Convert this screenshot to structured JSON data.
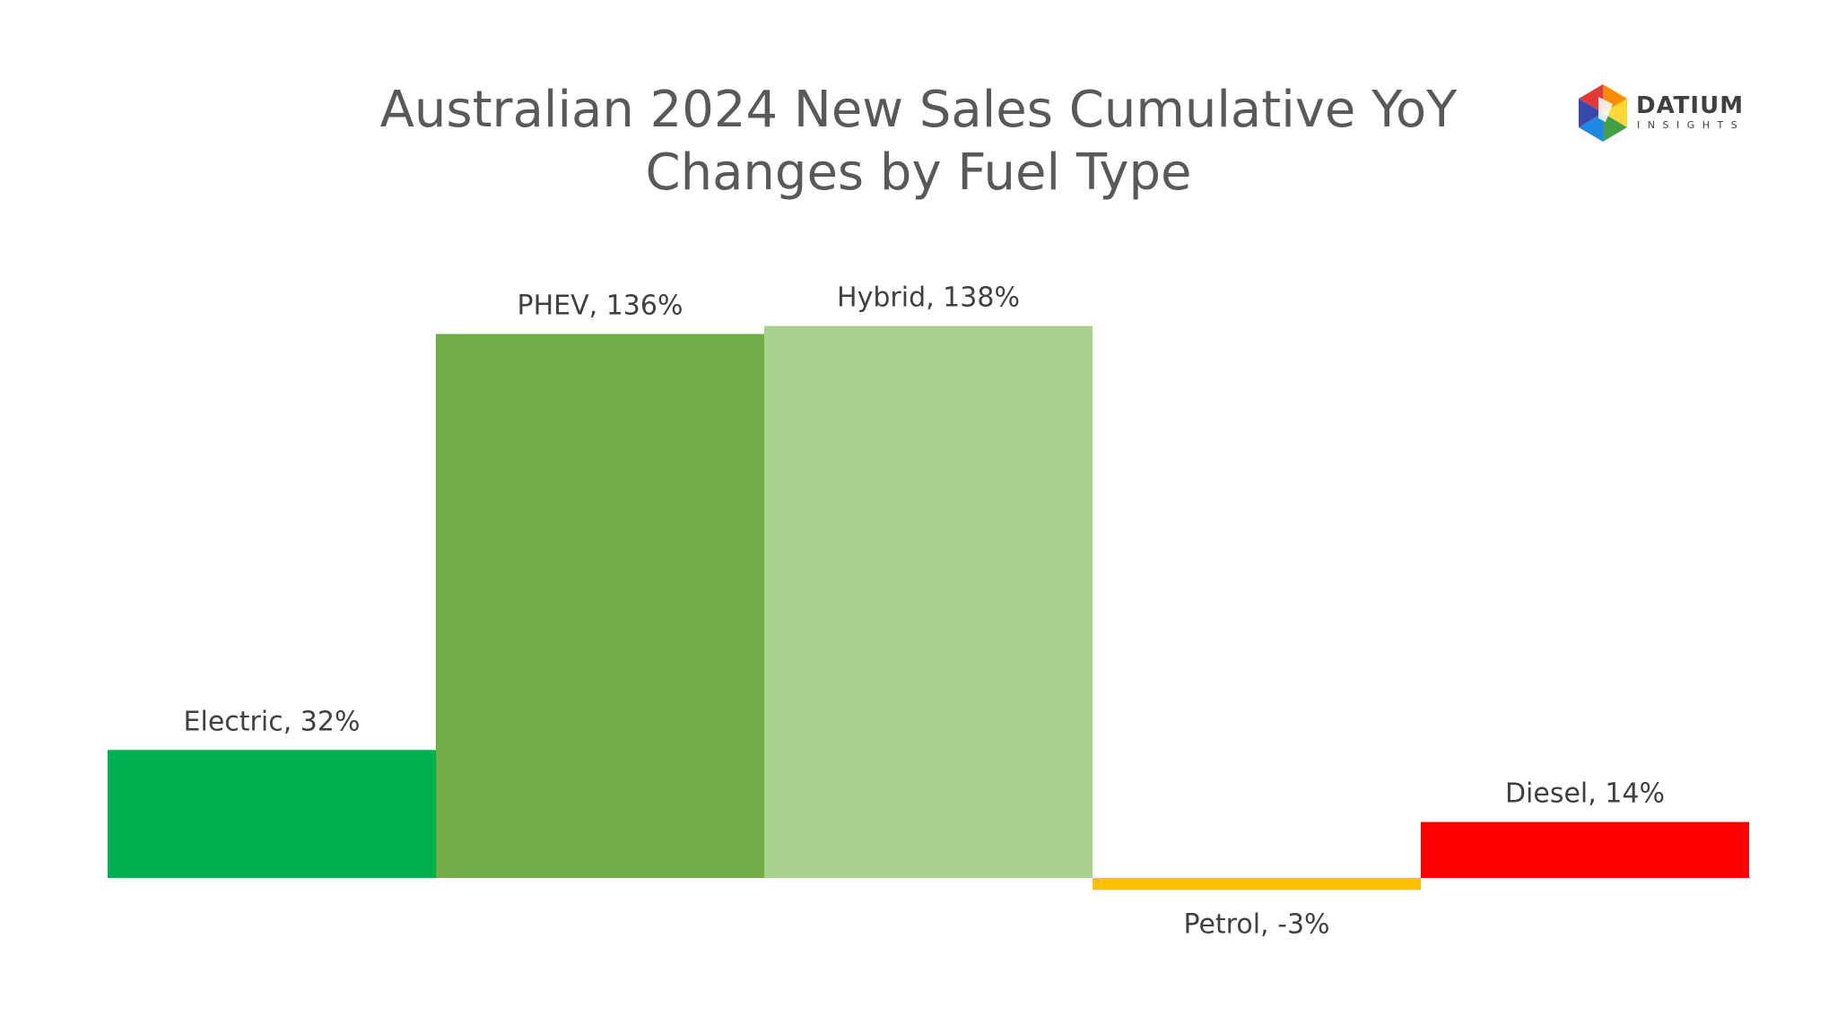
{
  "chart_data": {
    "type": "bar",
    "title_lines": [
      "Australian 2024 New Sales Cumulative YoY",
      "Changes by Fuel Type"
    ],
    "categories": [
      "Electric",
      "PHEV",
      "Hybrid",
      "Petrol",
      "Diesel"
    ],
    "values": [
      32,
      136,
      138,
      -3,
      14
    ],
    "data_labels": [
      "Electric, 32%",
      "PHEV, 136%",
      "Hybrid, 138%",
      "Petrol, -3%",
      "Diesel, 14%"
    ],
    "colors": [
      "#00B050",
      "#70AD47",
      "#A9D18E",
      "#FFC000",
      "#FF0000"
    ],
    "unit": "%",
    "grid": false,
    "legend": "none"
  },
  "brand": {
    "name": "DATIUM",
    "sub": "INSIGHTS",
    "icon": "datium-hexagon-logo",
    "colors": [
      "#E53935",
      "#FB8C00",
      "#FDD835",
      "#43A047",
      "#1E88E5",
      "#3949AB",
      "#8E24AA"
    ]
  }
}
